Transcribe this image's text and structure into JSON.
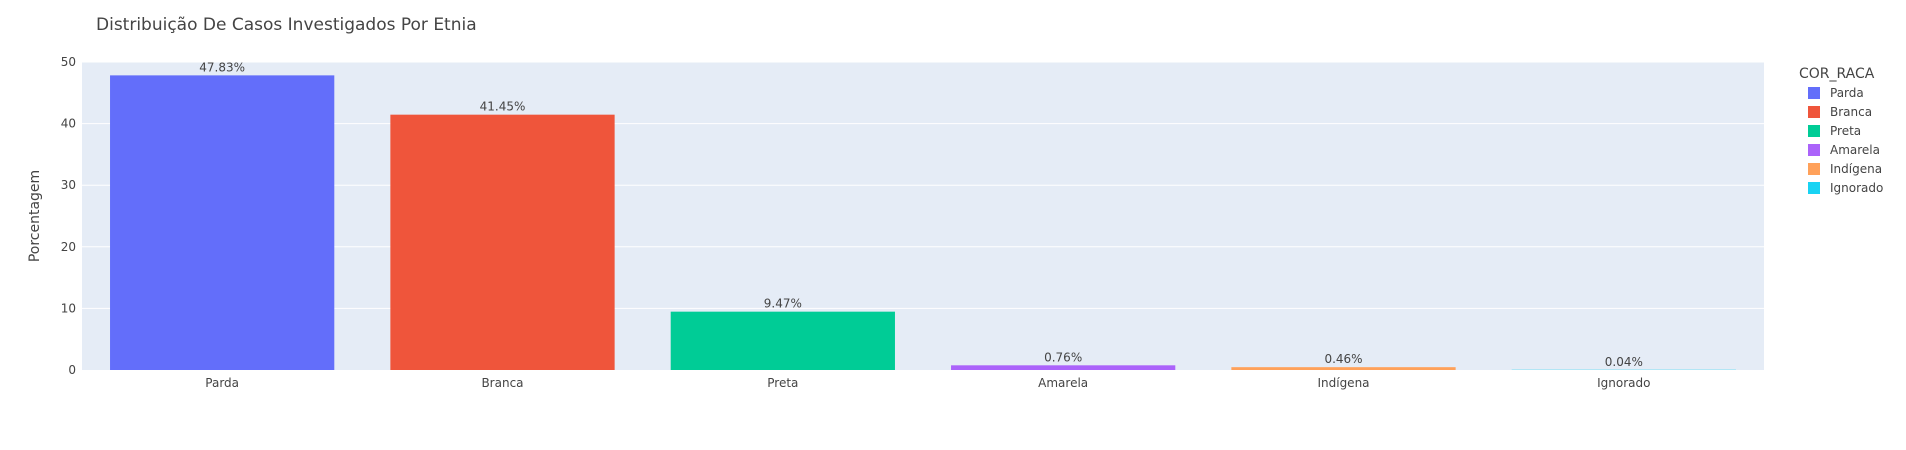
{
  "chart_data": {
    "type": "bar",
    "title": "Distribuição De Casos Investigados Por Etnia",
    "xlabel": "",
    "ylabel": "Porcentagem",
    "ylim": [
      0,
      50
    ],
    "yticks": [
      0,
      10,
      20,
      30,
      40,
      50
    ],
    "grid": true,
    "legend_title": "COR_RACA",
    "legend_position": "right",
    "categories": [
      "Parda",
      "Branca",
      "Preta",
      "Amarela",
      "Indígena",
      "Ignorado"
    ],
    "values": [
      47.83,
      41.45,
      9.47,
      0.76,
      0.46,
      0.04
    ],
    "labels": [
      "47.83%",
      "41.45%",
      "9.47%",
      "0.76%",
      "0.46%",
      "0.04%"
    ],
    "colors": [
      "#636efa",
      "#ef553b",
      "#00cc96",
      "#ab63fa",
      "#ffa15a",
      "#19d3f3"
    ]
  },
  "style": {
    "plot_background": "#e5ecf6",
    "gridline": "#ffffff"
  }
}
